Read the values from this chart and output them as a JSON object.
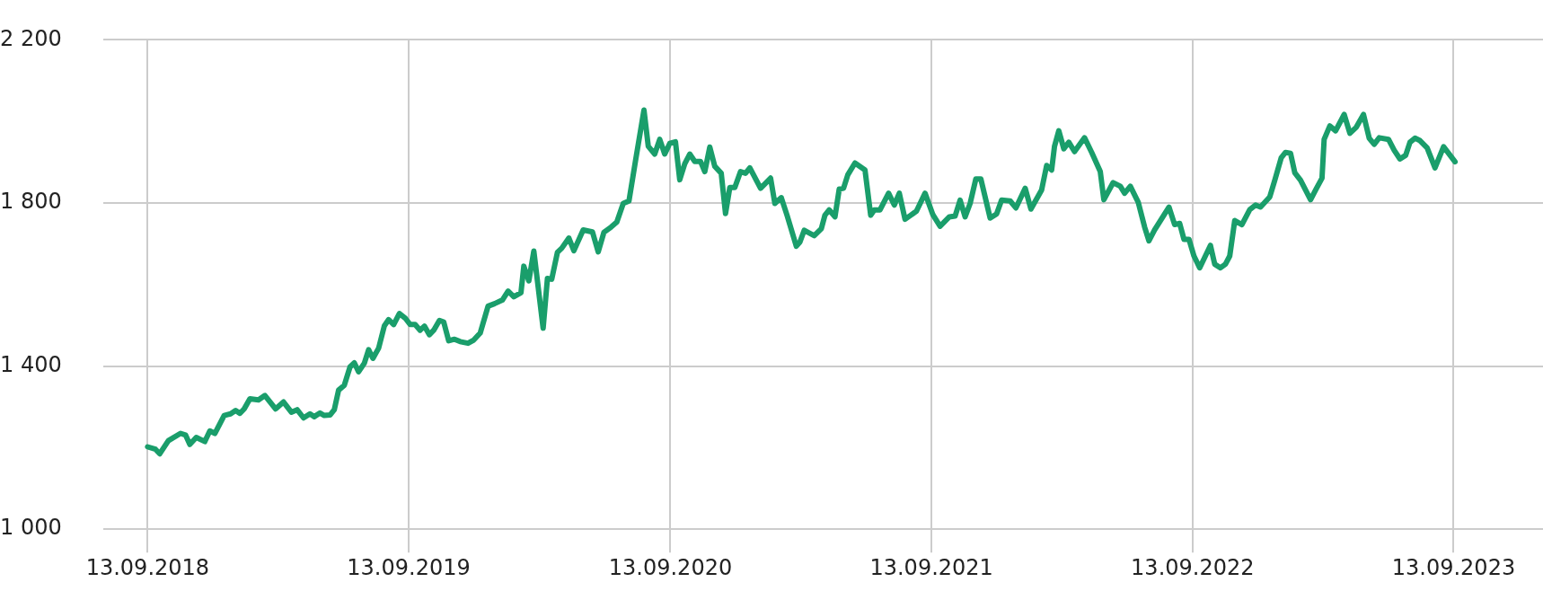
{
  "chart_data": {
    "type": "line",
    "color": "#1a9e6b",
    "grid": true,
    "xlim": [
      "2018-07-13",
      "2024-01-16"
    ],
    "ylim": [
      1000,
      2200
    ],
    "xticks": [
      {
        "value": "2018-09-13",
        "label": "13.09.2018"
      },
      {
        "value": "2019-09-13",
        "label": "13.09.2019"
      },
      {
        "value": "2020-09-13",
        "label": "13.09.2020"
      },
      {
        "value": "2021-09-13",
        "label": "13.09.2021"
      },
      {
        "value": "2022-09-13",
        "label": "13.09.2022"
      },
      {
        "value": "2023-09-13",
        "label": "13.09.2023"
      }
    ],
    "yticks": [
      {
        "value": 1000,
        "label": "1 000"
      },
      {
        "value": 1400,
        "label": "1 400"
      },
      {
        "value": 1800,
        "label": "1 800"
      },
      {
        "value": 2200,
        "label": "2 200"
      }
    ],
    "x": [
      "2018-09-13",
      "2018-09-24",
      "2018-09-30",
      "2018-10-12",
      "2018-10-29",
      "2018-11-05",
      "2018-11-11",
      "2018-11-20",
      "2018-12-02",
      "2018-12-09",
      "2018-12-16",
      "2018-12-29",
      "2019-01-07",
      "2019-01-14",
      "2019-01-20",
      "2019-01-26",
      "2019-02-03",
      "2019-02-15",
      "2019-02-24",
      "2019-03-11",
      "2019-03-22",
      "2019-04-02",
      "2019-04-10",
      "2019-04-19",
      "2019-04-28",
      "2019-05-04",
      "2019-05-12",
      "2019-05-18",
      "2019-05-26",
      "2019-06-01",
      "2019-06-07",
      "2019-06-15",
      "2019-06-23",
      "2019-06-29",
      "2019-07-05",
      "2019-07-13",
      "2019-07-19",
      "2019-07-25",
      "2019-08-02",
      "2019-08-10",
      "2019-08-16",
      "2019-08-23",
      "2019-08-31",
      "2019-09-08",
      "2019-09-15",
      "2019-09-22",
      "2019-09-29",
      "2019-10-05",
      "2019-10-12",
      "2019-10-18",
      "2019-10-26",
      "2019-11-01",
      "2019-11-08",
      "2019-11-16",
      "2019-11-24",
      "2019-12-05",
      "2019-12-13",
      "2019-12-22",
      "2020-01-02",
      "2020-01-11",
      "2020-01-22",
      "2020-01-30",
      "2020-02-07",
      "2020-02-17",
      "2020-02-21",
      "2020-02-28",
      "2020-03-06",
      "2020-03-19",
      "2020-03-25",
      "2020-03-31",
      "2020-04-08",
      "2020-04-14",
      "2020-04-24",
      "2020-05-01",
      "2020-05-14",
      "2020-05-27",
      "2020-06-04",
      "2020-06-12",
      "2020-06-22",
      "2020-06-30",
      "2020-07-09",
      "2020-07-17",
      "2020-07-26",
      "2020-08-07",
      "2020-08-13",
      "2020-08-22",
      "2020-08-29",
      "2020-09-05",
      "2020-09-12",
      "2020-09-20",
      "2020-09-26",
      "2020-10-03",
      "2020-10-10",
      "2020-10-17",
      "2020-10-25",
      "2020-10-31",
      "2020-11-07",
      "2020-11-14",
      "2020-11-23",
      "2020-11-29",
      "2020-12-05",
      "2020-12-12",
      "2020-12-20",
      "2020-12-27",
      "2021-01-02",
      "2021-01-17",
      "2021-01-31",
      "2021-02-06",
      "2021-02-15",
      "2021-02-23",
      "2021-03-08",
      "2021-03-13",
      "2021-03-19",
      "2021-04-02",
      "2021-04-12",
      "2021-04-17",
      "2021-04-23",
      "2021-05-01",
      "2021-05-07",
      "2021-05-13",
      "2021-05-19",
      "2021-05-29",
      "2021-06-12",
      "2021-06-20",
      "2021-06-25",
      "2021-07-03",
      "2021-07-15",
      "2021-07-23",
      "2021-07-30",
      "2021-08-07",
      "2021-08-15",
      "2021-08-23",
      "2021-09-04",
      "2021-09-15",
      "2021-09-25",
      "2021-10-08",
      "2021-10-16",
      "2021-10-23",
      "2021-10-30",
      "2021-11-06",
      "2021-11-14",
      "2021-11-21",
      "2021-12-04",
      "2021-12-13",
      "2021-12-20",
      "2022-01-01",
      "2022-01-09",
      "2022-01-22",
      "2022-01-30",
      "2022-02-14",
      "2022-02-21",
      "2022-02-28",
      "2022-03-04",
      "2022-03-10",
      "2022-03-17",
      "2022-03-24",
      "2022-04-01",
      "2022-04-15",
      "2022-04-25",
      "2022-05-07",
      "2022-05-12",
      "2022-05-25",
      "2022-06-04",
      "2022-06-10",
      "2022-06-18",
      "2022-06-29",
      "2022-07-08",
      "2022-07-14",
      "2022-07-22",
      "2022-08-11",
      "2022-08-19",
      "2022-08-26",
      "2022-09-01",
      "2022-09-08",
      "2022-09-15",
      "2022-09-23",
      "2022-10-08",
      "2022-10-14",
      "2022-10-22",
      "2022-10-29",
      "2022-11-04",
      "2022-11-11",
      "2022-11-21",
      "2022-12-02",
      "2022-12-10",
      "2022-12-17",
      "2022-12-30",
      "2023-01-06",
      "2023-01-15",
      "2023-01-21",
      "2023-01-28",
      "2023-02-03",
      "2023-02-11",
      "2023-02-25",
      "2023-03-05",
      "2023-03-13",
      "2023-03-16",
      "2023-03-24",
      "2023-04-01",
      "2023-04-13",
      "2023-04-21",
      "2023-04-30",
      "2023-05-10",
      "2023-05-18",
      "2023-05-25",
      "2023-06-01",
      "2023-06-14",
      "2023-06-22",
      "2023-06-30",
      "2023-07-08",
      "2023-07-14",
      "2023-07-21",
      "2023-07-28",
      "2023-08-07",
      "2023-08-18",
      "2023-08-30",
      "2023-09-15"
    ],
    "values": [
      1202,
      1196,
      1185,
      1217,
      1235,
      1231,
      1208,
      1225,
      1215,
      1241,
      1235,
      1279,
      1283,
      1291,
      1284,
      1295,
      1320,
      1317,
      1328,
      1295,
      1312,
      1287,
      1293,
      1273,
      1283,
      1276,
      1285,
      1279,
      1280,
      1293,
      1341,
      1353,
      1398,
      1408,
      1386,
      1407,
      1440,
      1419,
      1444,
      1499,
      1514,
      1502,
      1529,
      1518,
      1502,
      1502,
      1488,
      1498,
      1477,
      1488,
      1512,
      1508,
      1462,
      1466,
      1460,
      1456,
      1464,
      1481,
      1547,
      1553,
      1562,
      1584,
      1570,
      1580,
      1645,
      1609,
      1682,
      1493,
      1615,
      1613,
      1679,
      1689,
      1714,
      1683,
      1734,
      1729,
      1680,
      1728,
      1741,
      1753,
      1799,
      1805,
      1902,
      2028,
      1939,
      1920,
      1956,
      1920,
      1946,
      1950,
      1857,
      1896,
      1920,
      1902,
      1902,
      1877,
      1937,
      1890,
      1873,
      1774,
      1838,
      1838,
      1877,
      1873,
      1886,
      1836,
      1861,
      1799,
      1813,
      1770,
      1694,
      1704,
      1733,
      1720,
      1737,
      1770,
      1783,
      1766,
      1834,
      1836,
      1869,
      1898,
      1881,
      1770,
      1783,
      1783,
      1824,
      1795,
      1824,
      1760,
      1770,
      1780,
      1824,
      1771,
      1743,
      1766,
      1768,
      1807,
      1766,
      1799,
      1859,
      1859,
      1763,
      1773,
      1807,
      1805,
      1788,
      1836,
      1785,
      1832,
      1892,
      1881,
      1939,
      1977,
      1933,
      1949,
      1926,
      1960,
      1924,
      1877,
      1808,
      1850,
      1841,
      1824,
      1841,
      1802,
      1741,
      1707,
      1734,
      1790,
      1747,
      1750,
      1711,
      1711,
      1670,
      1641,
      1696,
      1650,
      1641,
      1650,
      1670,
      1757,
      1747,
      1784,
      1795,
      1790,
      1815,
      1856,
      1911,
      1924,
      1922,
      1874,
      1856,
      1808,
      1835,
      1861,
      1956,
      1989,
      1977,
      2017,
      1971,
      1986,
      2017,
      1959,
      1944,
      1960,
      1956,
      1929,
      1908,
      1917,
      1949,
      1959,
      1953,
      1935,
      1886,
      1938,
      1901
    ]
  }
}
